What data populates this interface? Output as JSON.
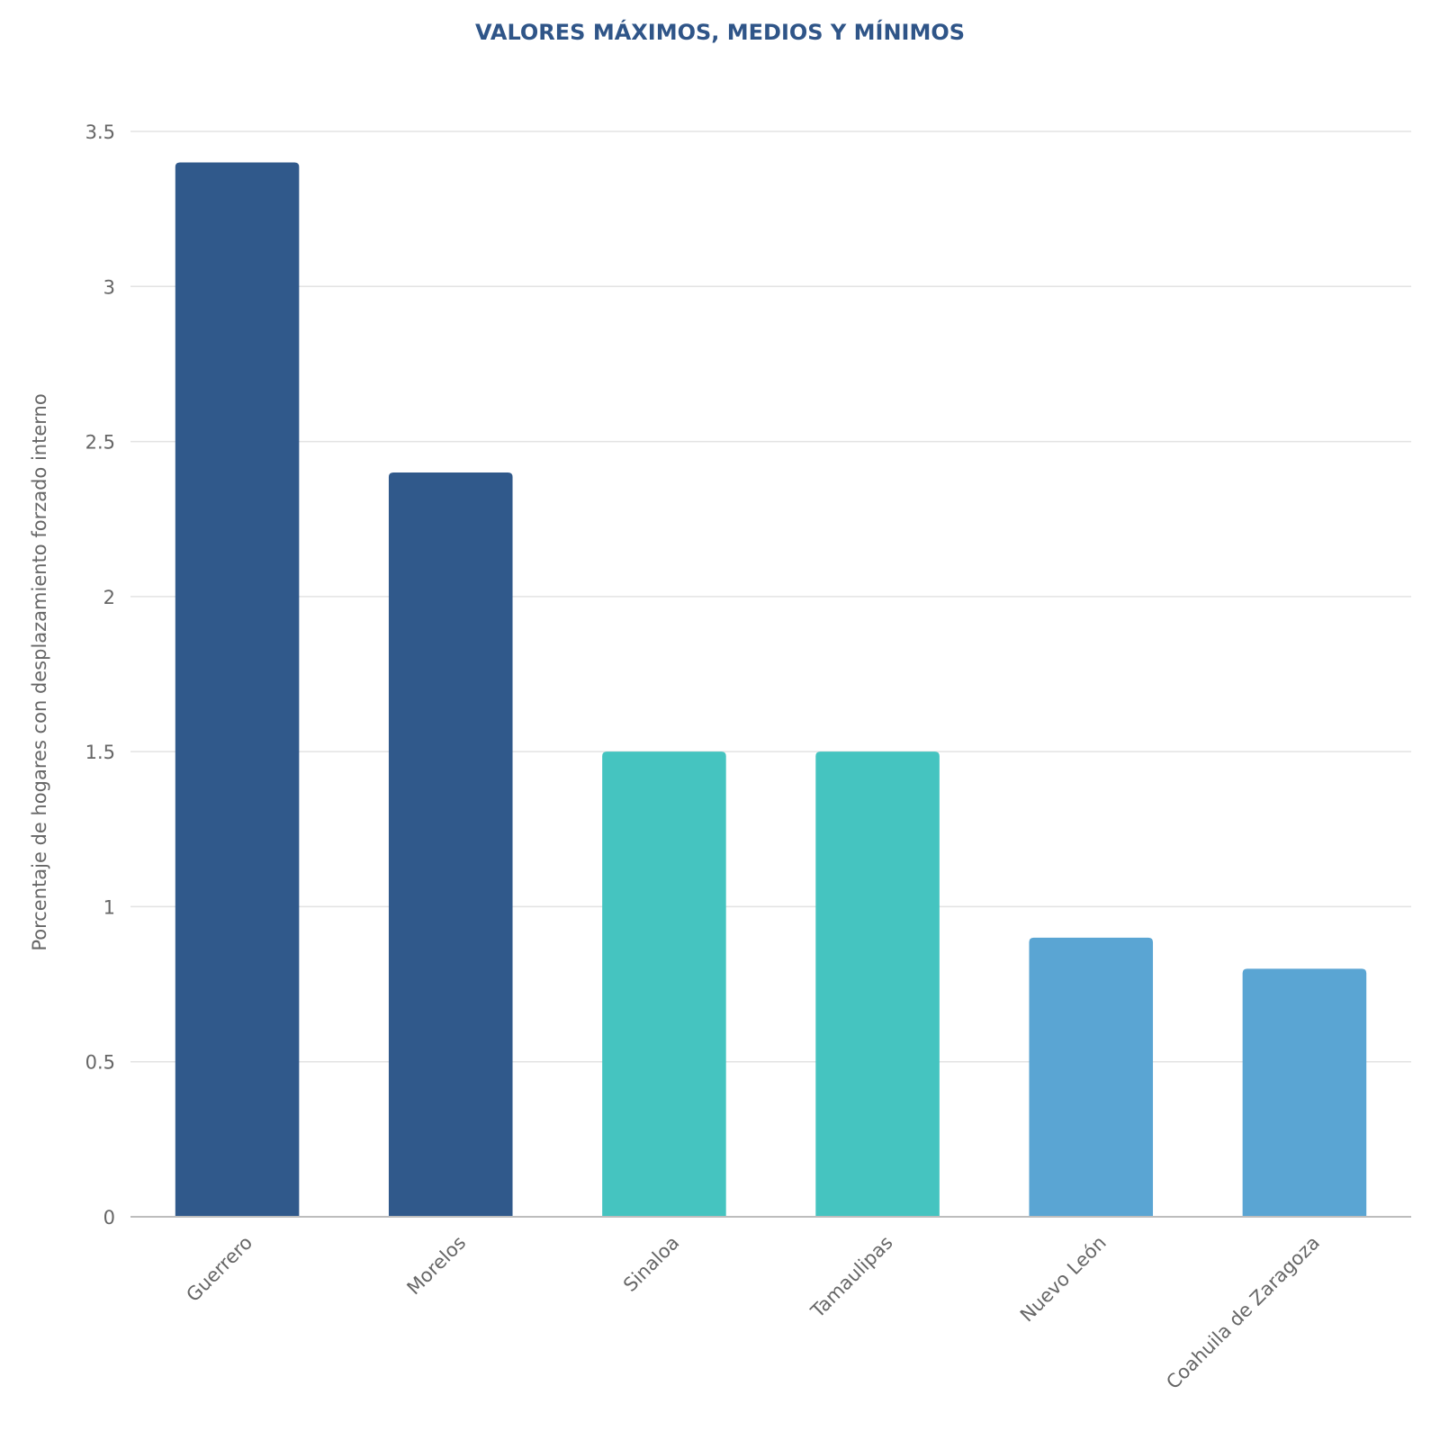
{
  "chart_data": {
    "type": "bar",
    "title": "VALORES MÁXIMOS, MEDIOS Y MÍNIMOS",
    "xlabel": "",
    "ylabel": "Porcentaje de hogares con desplazamiento forzado interno",
    "categories": [
      "Guerrero",
      "Morelos",
      "Sinaloa",
      "Tamaulipas",
      "Nuevo León",
      "Coahuila de Zaragoza"
    ],
    "values": [
      3.4,
      2.4,
      1.5,
      1.5,
      0.9,
      0.8
    ],
    "bar_colors": [
      "#30598b",
      "#30598b",
      "#45c4c0",
      "#45c4c0",
      "#5aa5d3",
      "#5aa5d3"
    ],
    "ylim": [
      0,
      3.5
    ],
    "yticks": [
      0,
      0.5,
      1,
      1.5,
      2,
      2.5,
      3,
      3.5
    ],
    "ytick_labels": [
      "0",
      "0.5",
      "1",
      "1.5",
      "2",
      "2.5",
      "3",
      "3.5"
    ],
    "grid": true,
    "legend": "none"
  }
}
